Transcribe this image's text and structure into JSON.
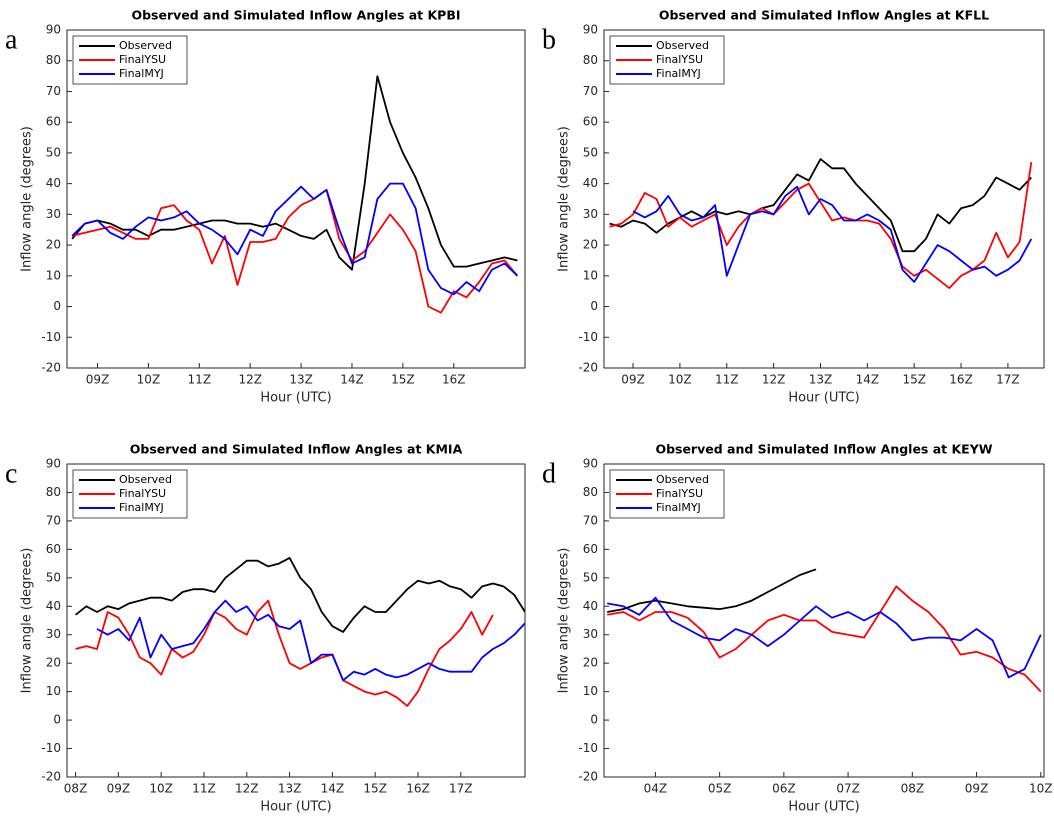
{
  "chart_data": [
    {
      "type": "line",
      "panel_label": "a",
      "title": "Observed and Simulated Inflow Angles at KPBI",
      "xlabel": "Hour (UTC)",
      "ylabel": "Inflow angle (degrees)",
      "legend": "upper left",
      "grid": false,
      "xlim": [
        8.4,
        17.4
      ],
      "xticks": [
        {
          "value": 9,
          "label": "09Z"
        },
        {
          "value": 10,
          "label": "10Z"
        },
        {
          "value": 11,
          "label": "11Z"
        },
        {
          "value": 12,
          "label": "12Z"
        },
        {
          "value": 13,
          "label": "13Z"
        },
        {
          "value": 14,
          "label": "14Z"
        },
        {
          "value": 15,
          "label": "15Z"
        },
        {
          "value": 16,
          "label": "16Z"
        }
      ],
      "ylim": [
        -20,
        90
      ],
      "yticks": [
        -20,
        -10,
        0,
        10,
        20,
        30,
        40,
        50,
        60,
        70,
        80,
        90
      ],
      "x": [
        8.5,
        8.75,
        9,
        9.25,
        9.5,
        9.75,
        10,
        10.25,
        10.5,
        10.75,
        11,
        11.25,
        11.5,
        11.75,
        12,
        12.25,
        12.5,
        12.75,
        13,
        13.25,
        13.5,
        13.75,
        14,
        14.25,
        14.5,
        14.75,
        15,
        15.25,
        15.5,
        15.75,
        16,
        16.25,
        16.5,
        16.75,
        17,
        17.25
      ],
      "series": [
        {
          "name": "Observed",
          "color": "#000000",
          "values": [
            22,
            27,
            28,
            27,
            25,
            25,
            23,
            25,
            25,
            26,
            27,
            28,
            28,
            27,
            27,
            26,
            27,
            25,
            23,
            22,
            25,
            16,
            12,
            40,
            75,
            60,
            50,
            42,
            32,
            20,
            13,
            13,
            14,
            15,
            16,
            15
          ]
        },
        {
          "name": "FinalYSU",
          "color": "#ff0000",
          "values": [
            23,
            24,
            25,
            26,
            24,
            22,
            22,
            32,
            33,
            28,
            25,
            14,
            23,
            7,
            21,
            21,
            22,
            29,
            33,
            35,
            38,
            22,
            15,
            18,
            24,
            30,
            25,
            18,
            0,
            -2,
            5,
            3,
            8,
            14,
            15,
            10
          ]
        },
        {
          "name": "FinalMYJ",
          "color": "#0000ff",
          "values": [
            23,
            27,
            28,
            24,
            22,
            26,
            29,
            28,
            29,
            31,
            27,
            25,
            22,
            17,
            25,
            23,
            31,
            35,
            39,
            35,
            38,
            25,
            14,
            16,
            35,
            40,
            40,
            32,
            12,
            6,
            4,
            8,
            5,
            12,
            14,
            10
          ]
        }
      ]
    },
    {
      "type": "line",
      "panel_label": "b",
      "title": "Observed and Simulated Inflow Angles at KFLL",
      "xlabel": "Hour (UTC)",
      "ylabel": "Inflow angle (degrees)",
      "legend": "upper left",
      "grid": false,
      "xlim": [
        8.38,
        17.77
      ],
      "xticks": [
        {
          "value": 9,
          "label": "09Z"
        },
        {
          "value": 10,
          "label": "10Z"
        },
        {
          "value": 11,
          "label": "11Z"
        },
        {
          "value": 12,
          "label": "12Z"
        },
        {
          "value": 13,
          "label": "13Z"
        },
        {
          "value": 14,
          "label": "14Z"
        },
        {
          "value": 15,
          "label": "15Z"
        },
        {
          "value": 16,
          "label": "16Z"
        },
        {
          "value": 17,
          "label": "17Z"
        }
      ],
      "ylim": [
        -20,
        90
      ],
      "yticks": [
        -20,
        -10,
        0,
        10,
        20,
        30,
        40,
        50,
        60,
        70,
        80,
        90
      ],
      "x": [
        8.5,
        8.75,
        9,
        9.25,
        9.5,
        9.75,
        10,
        10.25,
        10.5,
        10.75,
        11,
        11.25,
        11.5,
        11.75,
        12,
        12.25,
        12.5,
        12.75,
        13,
        13.25,
        13.5,
        13.75,
        14,
        14.25,
        14.5,
        14.75,
        15,
        15.25,
        15.5,
        15.75,
        16,
        16.25,
        16.5,
        16.75,
        17,
        17.25,
        17.5
      ],
      "series": [
        {
          "name": "Observed",
          "color": "#000000",
          "values": [
            27,
            26,
            28,
            27,
            24,
            27,
            29,
            31,
            29,
            31,
            30,
            31,
            30,
            32,
            33,
            38,
            43,
            41,
            48,
            45,
            45,
            40,
            36,
            32,
            28,
            18,
            18,
            22,
            30,
            27,
            32,
            33,
            36,
            42,
            40,
            38,
            42
          ]
        },
        {
          "name": "FinalYSU",
          "color": "#ff0000",
          "values": [
            26,
            27,
            30,
            37,
            35,
            26,
            29,
            26,
            28,
            30,
            20,
            26,
            30,
            32,
            30,
            34,
            38,
            40,
            34,
            28,
            29,
            28,
            28,
            27,
            22,
            13,
            10,
            12,
            9,
            6,
            10,
            12,
            15,
            24,
            16,
            21,
            47
          ]
        },
        {
          "name": "FinalMYJ",
          "color": "#0000ff",
          "values": [
            null,
            null,
            31,
            29,
            31,
            36,
            30,
            28,
            29,
            33,
            10,
            20,
            30,
            31,
            30,
            36,
            39,
            30,
            35,
            33,
            28,
            28,
            30,
            28,
            25,
            12,
            8,
            14,
            20,
            18,
            15,
            12,
            13,
            10,
            12,
            15,
            22
          ]
        }
      ]
    },
    {
      "type": "line",
      "panel_label": "c",
      "title": "Observed and Simulated Inflow Angles at KMIA",
      "xlabel": "Hour (UTC)",
      "ylabel": "Inflow angle (degrees)",
      "legend": "upper left",
      "grid": false,
      "xlim": [
        7.8,
        18.5
      ],
      "xticks": [
        {
          "value": 8,
          "label": "08Z"
        },
        {
          "value": 9,
          "label": "09Z"
        },
        {
          "value": 10,
          "label": "10Z"
        },
        {
          "value": 11,
          "label": "11Z"
        },
        {
          "value": 12,
          "label": "12Z"
        },
        {
          "value": 13,
          "label": "13Z"
        },
        {
          "value": 14,
          "label": "14Z"
        },
        {
          "value": 15,
          "label": "15Z"
        },
        {
          "value": 16,
          "label": "16Z"
        },
        {
          "value": 17,
          "label": "17Z"
        }
      ],
      "ylim": [
        -20,
        90
      ],
      "yticks": [
        -20,
        -10,
        0,
        10,
        20,
        30,
        40,
        50,
        60,
        70,
        80,
        90
      ],
      "x": [
        8,
        8.25,
        8.5,
        8.75,
        9,
        9.25,
        9.5,
        9.75,
        10,
        10.25,
        10.5,
        10.75,
        11,
        11.25,
        11.5,
        11.75,
        12,
        12.25,
        12.5,
        12.75,
        13,
        13.25,
        13.5,
        13.75,
        14,
        14.25,
        14.5,
        14.75,
        15,
        15.25,
        15.5,
        15.75,
        16,
        16.25,
        16.5,
        16.75,
        17,
        17.25,
        17.5,
        17.75,
        18,
        18.25,
        18.5
      ],
      "series": [
        {
          "name": "Observed",
          "color": "#000000",
          "values": [
            37,
            40,
            38,
            40,
            39,
            41,
            42,
            43,
            43,
            42,
            45,
            46,
            46,
            45,
            50,
            53,
            56,
            56,
            54,
            55,
            57,
            50,
            46,
            38,
            33,
            31,
            36,
            40,
            38,
            38,
            42,
            46,
            49,
            48,
            49,
            47,
            46,
            43,
            47,
            48,
            47,
            44,
            38
          ]
        },
        {
          "name": "FinalYSU",
          "color": "#ff0000",
          "values": [
            25,
            26,
            25,
            38,
            36,
            30,
            22,
            20,
            16,
            25,
            22,
            24,
            30,
            38,
            36,
            32,
            30,
            38,
            42,
            30,
            20,
            18,
            20,
            22,
            23,
            14,
            12,
            10,
            9,
            10,
            8,
            5,
            10,
            18,
            25,
            28,
            32,
            38,
            30,
            37,
            null,
            null,
            null
          ]
        },
        {
          "name": "FinalMYJ",
          "color": "#0000ff",
          "values": [
            null,
            null,
            32,
            30,
            32,
            28,
            36,
            22,
            30,
            25,
            26,
            27,
            32,
            38,
            42,
            38,
            40,
            35,
            37,
            33,
            32,
            35,
            20,
            23,
            23,
            14,
            17,
            16,
            18,
            16,
            15,
            16,
            18,
            20,
            18,
            17,
            17,
            17,
            22,
            25,
            27,
            30,
            34
          ]
        }
      ]
    },
    {
      "type": "line",
      "panel_label": "d",
      "title": "Observed and Simulated Inflow Angles at KEYW",
      "xlabel": "Hour (UTC)",
      "ylabel": "Inflow angle (degrees)",
      "legend": "upper left",
      "grid": false,
      "xlim": [
        3.2,
        10.05
      ],
      "xticks": [
        {
          "value": 4,
          "label": "04Z"
        },
        {
          "value": 5,
          "label": "05Z"
        },
        {
          "value": 6,
          "label": "06Z"
        },
        {
          "value": 7,
          "label": "07Z"
        },
        {
          "value": 8,
          "label": "08Z"
        },
        {
          "value": 9,
          "label": "09Z"
        },
        {
          "value": 10,
          "label": "10Z"
        }
      ],
      "ylim": [
        -20,
        90
      ],
      "yticks": [
        -20,
        -10,
        0,
        10,
        20,
        30,
        40,
        50,
        60,
        70,
        80,
        90
      ],
      "x": [
        3.25,
        3.5,
        3.75,
        4,
        4.25,
        4.5,
        4.75,
        5,
        5.25,
        5.5,
        5.75,
        6,
        6.25,
        6.5,
        6.75,
        7,
        7.25,
        7.5,
        7.75,
        8,
        8.25,
        8.5,
        8.75,
        9,
        9.25,
        9.5,
        9.75,
        10
      ],
      "series": [
        {
          "name": "Observed",
          "color": "#000000",
          "values": [
            38,
            39,
            41,
            42,
            41,
            40,
            39.5,
            39,
            40,
            42,
            45,
            48,
            51,
            53,
            null,
            null,
            null,
            null,
            null,
            null,
            null,
            null,
            null,
            null,
            null,
            null,
            null,
            null
          ]
        },
        {
          "name": "FinalYSU",
          "color": "#ff0000",
          "values": [
            37,
            38,
            35,
            38,
            38,
            36,
            31,
            22,
            25,
            30,
            35,
            37,
            35,
            35,
            31,
            30,
            29,
            38,
            47,
            42,
            38,
            32,
            23,
            24,
            22,
            18,
            16,
            10
          ]
        },
        {
          "name": "FinalMYJ",
          "color": "#0000ff",
          "values": [
            41,
            40,
            37,
            43,
            35,
            32,
            29,
            28,
            32,
            30,
            26,
            30,
            35,
            40,
            36,
            38,
            35,
            38,
            34,
            28,
            29,
            29,
            28,
            32,
            28,
            15,
            18,
            30
          ]
        }
      ]
    }
  ]
}
